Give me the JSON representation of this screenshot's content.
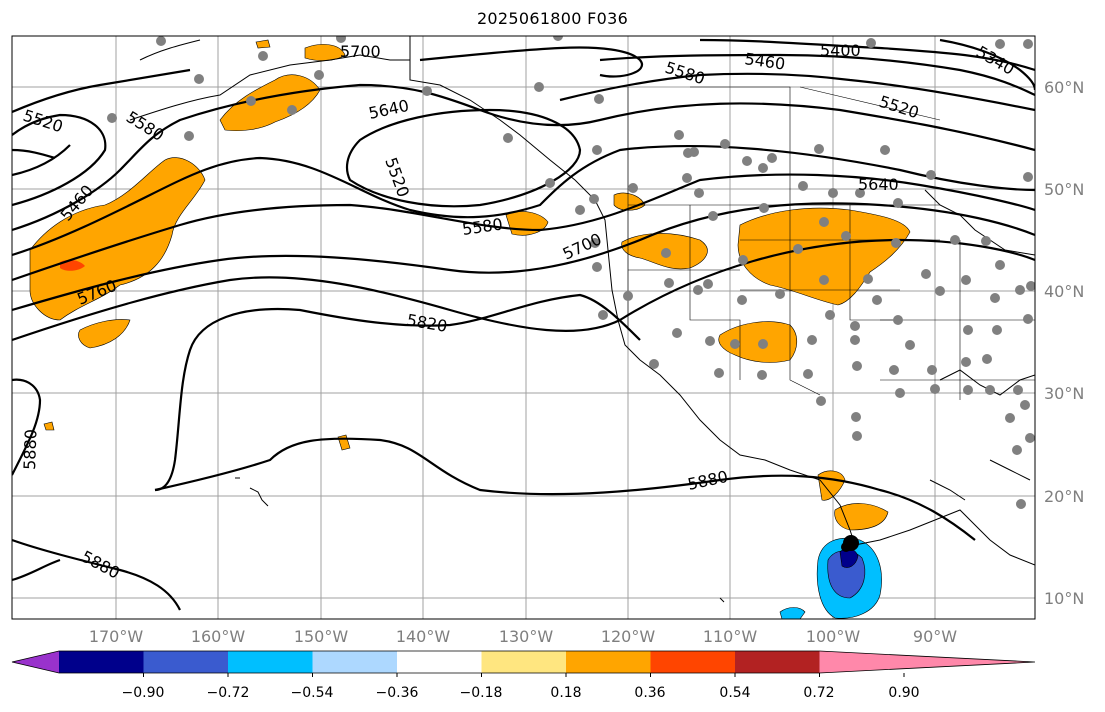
{
  "title": "2025061800 F036",
  "lat_labels": [
    "60°N",
    "50°N",
    "40°N",
    "30°N",
    "20°N",
    "10°N"
  ],
  "lon_labels": [
    "170°W",
    "160°W",
    "150°W",
    "140°W",
    "130°W",
    "120°W",
    "110°W",
    "100°W",
    "90°W"
  ],
  "contour_labels": [
    "5700",
    "5400",
    "5460",
    "5340",
    "5580",
    "5520",
    "5640",
    "5520",
    "5580",
    "5520",
    "5460",
    "5640",
    "5580",
    "5700",
    "5760",
    "5820",
    "5880",
    "5880",
    "5880"
  ],
  "colorbar": {
    "tick_labels": [
      "−0.90",
      "−0.72",
      "−0.54",
      "−0.36",
      "−0.18",
      "0.18",
      "0.36",
      "0.54",
      "0.72",
      "0.90"
    ],
    "colors": [
      "#9932cc",
      "#00008b",
      "#3a5bcf",
      "#00bfff",
      "#add8ff",
      "#ffffff",
      "#ffe680",
      "#ffa500",
      "#ff4500",
      "#b22222",
      "#ff88aa"
    ]
  },
  "colors": {
    "orange_fill": "#ffa500",
    "red_fill": "#ff4500",
    "navy_fill": "#00008b",
    "blue_fill": "#3a5bcf",
    "sky_fill": "#00bfff",
    "gridline": "#a0a0a0",
    "station_dot": "#808080"
  }
}
